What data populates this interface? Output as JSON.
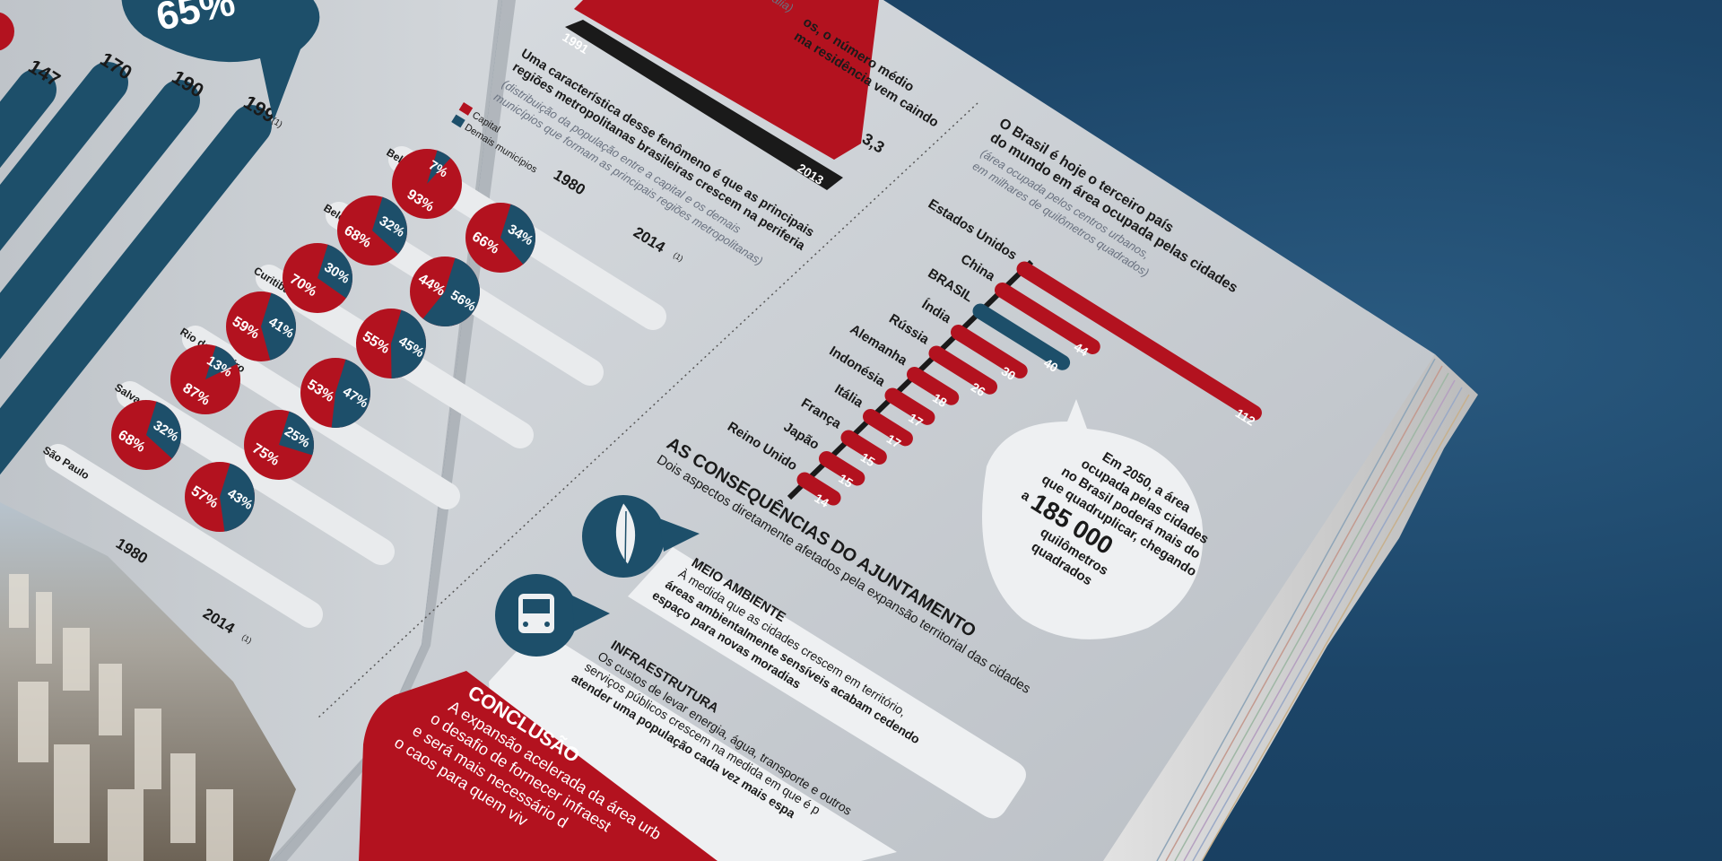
{
  "colors": {
    "red": "#b3121f",
    "blue": "#1d4f6a",
    "page": "#c9cdd2",
    "dark": "#1a1a1a",
    "background": "#1c4568"
  },
  "left_page": {
    "big_percent": "65%",
    "bars": [
      {
        "value": "147",
        "value_num": 147
      },
      {
        "value": "170",
        "value_num": 170
      },
      {
        "value": "190",
        "value_num": 190
      },
      {
        "value": "199",
        "value_num": 199,
        "note": "(1)"
      }
    ]
  },
  "household": {
    "caption_line1": "os, o número médio",
    "caption_line2": "ma residência vem caindo",
    "source": "alia)",
    "year_start": "1991",
    "year_end": "2013",
    "value_end": "3,3"
  },
  "metro": {
    "title_line1": "Uma característica desse fenômeno é que as principais",
    "title_line2": "regiões metropolitanas brasileiras crescem na periferia",
    "subtitle_line1": "(distribuição da população entre a capital e os demais",
    "subtitle_line2": "municípios que formam as principais regiões metropolitanas)",
    "legend": [
      {
        "label": "Capital",
        "color": "#b3121f"
      },
      {
        "label": "Demais municípios",
        "color": "#1d4f6a"
      }
    ],
    "year_1980": "1980",
    "year_2014": "2014",
    "year_note": "(1)",
    "cities": [
      {
        "name": "Belém",
        "p1980": {
          "blue": "7%",
          "red": "93%",
          "blue_frac": 0.07
        },
        "p2014": null
      },
      {
        "name": "Belo Horizonte",
        "p1980": {
          "blue": "32%",
          "red": "68%",
          "blue_frac": 0.32
        },
        "p2014": {
          "blue": "34%",
          "red": "66%",
          "blue_frac": 0.34
        }
      },
      {
        "name": "Curitiba",
        "p1980": {
          "blue": "30%",
          "red": "70%",
          "blue_frac": 0.3
        },
        "p2014": {
          "blue": "56%",
          "red": "44%",
          "blue_frac": 0.56
        }
      },
      {
        "name": "Rio de Janeiro",
        "p1980": {
          "blue": "41%",
          "red": "59%",
          "blue_frac": 0.41
        },
        "p2014": {
          "blue": "45%",
          "red": "55%",
          "blue_frac": 0.45
        }
      },
      {
        "name": "Salvador",
        "p1980": {
          "blue": "13%",
          "red": "87%",
          "blue_frac": 0.13
        },
        "p2014": {
          "blue": "47%",
          "red": "53%",
          "blue_frac": 0.47
        }
      },
      {
        "name": "São Paulo",
        "p1980": {
          "blue": "32%",
          "red": "68%",
          "blue_frac": 0.32
        },
        "p2014": {
          "blue": "25%",
          "red": "75%",
          "blue_frac": 0.25
        }
      },
      {
        "name": "",
        "p1980": null,
        "p2014": {
          "blue": "43%",
          "red": "57%",
          "blue_frac": 0.43
        }
      }
    ]
  },
  "area_chart": {
    "title_line1": "O Brasil é hoje o terceiro país",
    "title_line2": "do mundo em área ocupada pelas cidades",
    "subtitle_line1": "(área ocupada pelos centros urbanos,",
    "subtitle_line2": "em milhares de quilômetros quadrados)",
    "countries": [
      {
        "name": "Estados Unidos",
        "value": "112",
        "value_num": 112,
        "highlight": false
      },
      {
        "name": "China",
        "value": "44",
        "value_num": 44,
        "highlight": false
      },
      {
        "name": "BRASIL",
        "value": "40",
        "value_num": 40,
        "highlight": true
      },
      {
        "name": "Índia",
        "value": "30",
        "value_num": 30,
        "highlight": false
      },
      {
        "name": "Rússia",
        "value": "26",
        "value_num": 26,
        "highlight": false
      },
      {
        "name": "Alemanha",
        "value": "18",
        "value_num": 18,
        "highlight": false
      },
      {
        "name": "Indonésia",
        "value": "17",
        "value_num": 17,
        "highlight": false
      },
      {
        "name": "Itália",
        "value": "17",
        "value_num": 17,
        "highlight": false
      },
      {
        "name": "França",
        "value": "15",
        "value_num": 15,
        "highlight": false
      },
      {
        "name": "Japão",
        "value": "15",
        "value_num": 15,
        "highlight": false
      },
      {
        "name": "Reino Unido",
        "value": "14",
        "value_num": 14,
        "highlight": false
      }
    ],
    "bubble": {
      "line1": "Em 2050, a área",
      "line2": "ocupada pelas cidades",
      "line3": "no Brasil poderá mais do",
      "line4": "que quadruplicar, chegando",
      "prefix": "a",
      "number": "185 000",
      "line6": "quilômetros",
      "line7": "quadrados"
    }
  },
  "consequences": {
    "title": "AS CONSEQUÊNCIAS DO AJUNTAMENTO",
    "subtitle": "Dois aspectos diretamente afetados pela expansão territorial das cidades",
    "items": [
      {
        "icon": "leaf-icon",
        "heading": "MEIO AMBIENTE",
        "text_line1": "À medida que as cidades crescem em território,",
        "text_line2": "áreas ambientalmente sensíveis acabam cedendo",
        "text_line3": "espaço para novas moradias"
      },
      {
        "icon": "bus-icon",
        "heading": "INFRAESTRUTURA",
        "text_line1": "Os custos de levar energia, água, transporte e outros",
        "text_line2": "serviços públicos crescem na medida em que é p",
        "text_line3": "atender uma população cada vez mais espa"
      }
    ]
  },
  "conclusion": {
    "heading": "CONCLUSÃO",
    "line1": "A expansão acelerada da área urb",
    "line2": "o desafio de fornecer infraest",
    "line3": "e será mais necessário d",
    "line4": "o caos para quem viv"
  }
}
